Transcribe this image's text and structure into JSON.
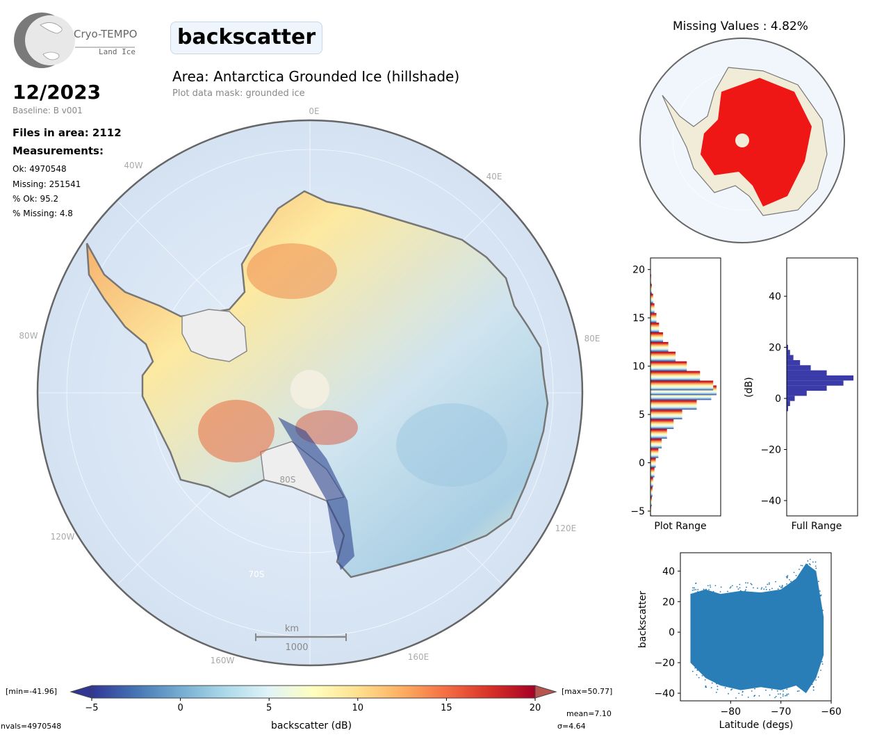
{
  "logo": {
    "name": "Cryo-TEMPO",
    "subtitle": "Land Ice"
  },
  "parameter": "backscatter",
  "date": "12/2023",
  "baseline": "Baseline: B v001",
  "files": "Files in area: 2112",
  "measurements": {
    "heading": "Measurements:",
    "ok": "Ok: 4970548",
    "missing": "Missing: 251541",
    "pct_ok": "% Ok: 95.2",
    "pct_missing": "% Missing: 4.8"
  },
  "area_title": "Area: Antarctica Grounded Ice (hillshade)",
  "mask_note": "Plot data mask: grounded ice",
  "map": {
    "lon_labels": [
      "0E",
      "40E",
      "80E",
      "120E",
      "160E",
      "160W",
      "120W",
      "80W",
      "40W"
    ],
    "lat_labels": [
      "80S",
      "70S"
    ],
    "scale_unit": "km",
    "scale_value": "1000"
  },
  "missing_title": "Missing Values : 4.82%",
  "colorbar": {
    "min_label": "[min=-41.96]",
    "max_label": "[max=50.77]",
    "ticks": [
      "-5",
      "0",
      "5",
      "10",
      "15",
      "20"
    ],
    "label": "backscatter (dB)",
    "nvals": "nvals=4970548",
    "mean": "mean=7.10",
    "sigma": "σ=4.64",
    "colors": [
      "#313695",
      "#4575b4",
      "#74add1",
      "#abd9e9",
      "#e0f3f8",
      "#ffffbf",
      "#fee090",
      "#fdae61",
      "#f46d43",
      "#d73027",
      "#a50026"
    ]
  },
  "chart_data": [
    {
      "type": "bar",
      "orientation": "horizontal",
      "xlabel": "Plot Range",
      "ylabel": "",
      "ylim": [
        -5.5,
        21.2
      ],
      "yticks": [
        "-5",
        "0",
        "5",
        "10",
        "15",
        "20"
      ],
      "bins": [
        {
          "y": -5,
          "count": 0.01
        },
        {
          "y": -4,
          "count": 0.02
        },
        {
          "y": -3,
          "count": 0.03
        },
        {
          "y": -2,
          "count": 0.04
        },
        {
          "y": -1,
          "count": 0.06
        },
        {
          "y": 0,
          "count": 0.08
        },
        {
          "y": 1,
          "count": 0.12
        },
        {
          "y": 2,
          "count": 0.17
        },
        {
          "y": 3,
          "count": 0.25
        },
        {
          "y": 4,
          "count": 0.35
        },
        {
          "y": 5,
          "count": 0.48
        },
        {
          "y": 6,
          "count": 0.7
        },
        {
          "y": 7,
          "count": 0.92
        },
        {
          "y": 7.5,
          "count": 1.0
        },
        {
          "y": 8,
          "count": 0.95
        },
        {
          "y": 9,
          "count": 0.75
        },
        {
          "y": 10,
          "count": 0.55
        },
        {
          "y": 11,
          "count": 0.38
        },
        {
          "y": 12,
          "count": 0.27
        },
        {
          "y": 13,
          "count": 0.19
        },
        {
          "y": 14,
          "count": 0.13
        },
        {
          "y": 15,
          "count": 0.09
        },
        {
          "y": 16,
          "count": 0.06
        },
        {
          "y": 17,
          "count": 0.04
        },
        {
          "y": 18,
          "count": 0.02
        },
        {
          "y": 19,
          "count": 0.01
        },
        {
          "y": 20,
          "count": 0.005
        }
      ]
    },
    {
      "type": "bar",
      "orientation": "horizontal",
      "xlabel": "Full Range",
      "ylabel": "(dB)",
      "ylim": [
        -46,
        55
      ],
      "yticks": [
        "-40",
        "-20",
        "0",
        "20",
        "40"
      ],
      "color": "#3a3aa8",
      "bins": [
        {
          "y": -4,
          "count": 0.02
        },
        {
          "y": -2,
          "count": 0.05
        },
        {
          "y": 0,
          "count": 0.12
        },
        {
          "y": 2,
          "count": 0.3
        },
        {
          "y": 4,
          "count": 0.6
        },
        {
          "y": 6,
          "count": 0.85
        },
        {
          "y": 8,
          "count": 1.0
        },
        {
          "y": 10,
          "count": 0.6
        },
        {
          "y": 12,
          "count": 0.36
        },
        {
          "y": 14,
          "count": 0.2
        },
        {
          "y": 16,
          "count": 0.1
        },
        {
          "y": 18,
          "count": 0.05
        },
        {
          "y": 20,
          "count": 0.02
        }
      ]
    },
    {
      "type": "scatter",
      "xlabel": "Latitude (degs)",
      "ylabel": "backscatter",
      "xlim": [
        -90,
        -60
      ],
      "ylim": [
        -45,
        52
      ],
      "xticks": [
        "−80",
        "−70",
        "−60"
      ],
      "yticks": [
        "−40",
        "−20",
        "0",
        "20",
        "40"
      ],
      "color": "#1f77b4",
      "envelope": [
        {
          "x": -88,
          "lo": -20,
          "hi": 25
        },
        {
          "x": -85,
          "lo": -30,
          "hi": 28
        },
        {
          "x": -82,
          "lo": -35,
          "hi": 25
        },
        {
          "x": -78,
          "lo": -38,
          "hi": 27
        },
        {
          "x": -74,
          "lo": -36,
          "hi": 26
        },
        {
          "x": -70,
          "lo": -38,
          "hi": 28
        },
        {
          "x": -67,
          "lo": -35,
          "hi": 35
        },
        {
          "x": -65,
          "lo": -40,
          "hi": 45
        },
        {
          "x": -63,
          "lo": -30,
          "hi": 40
        },
        {
          "x": -61.5,
          "lo": -15,
          "hi": 10
        }
      ]
    }
  ]
}
